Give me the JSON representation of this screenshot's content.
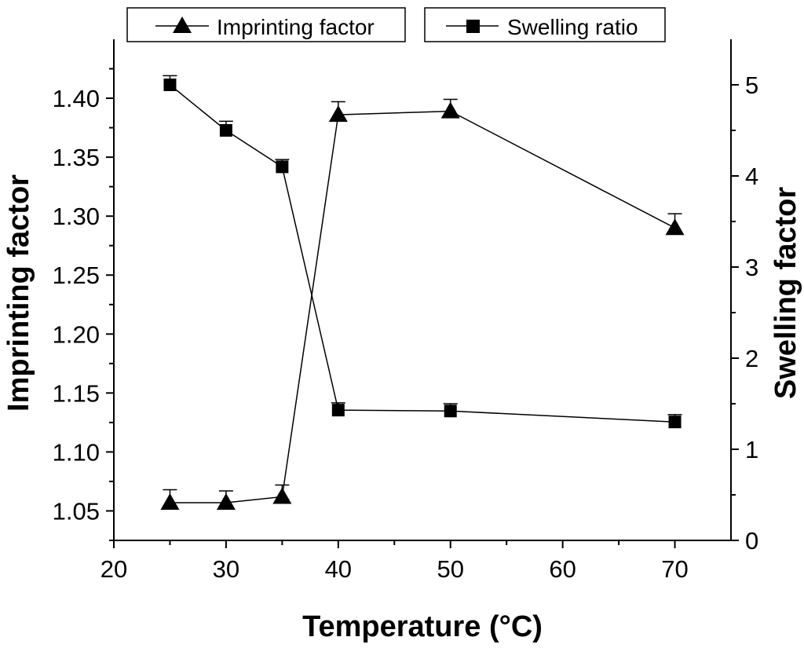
{
  "chart_data": {
    "type": "line",
    "title": "",
    "xlabel": "Temperature (°C)",
    "ylabel": "Imprinting factor",
    "y2label": "Swelling factor",
    "xlim": [
      20,
      75
    ],
    "ylim": [
      1.025,
      1.45
    ],
    "y2lim": [
      0,
      5.5
    ],
    "x_ticks": [
      "20",
      "30",
      "40",
      "50",
      "60",
      "70"
    ],
    "y_ticks": [
      "1.05",
      "1.10",
      "1.15",
      "1.20",
      "1.25",
      "1.30",
      "1.35",
      "1.40"
    ],
    "y2_ticks": [
      "0",
      "1",
      "2",
      "3",
      "4",
      "5"
    ],
    "legend_position": "top",
    "series": [
      {
        "name": "Imprinting factor",
        "axis": "left",
        "marker": "triangle",
        "x": [
          25,
          30,
          35,
          40,
          50,
          70
        ],
        "values": [
          1.057,
          1.057,
          1.062,
          1.386,
          1.389,
          1.29
        ],
        "errors": [
          0.011,
          0.01,
          0.01,
          0.011,
          0.01,
          0.012
        ],
        "color": "#000000"
      },
      {
        "name": "Swelling ratio",
        "axis": "right",
        "marker": "square",
        "x": [
          25,
          30,
          35,
          40,
          50,
          70
        ],
        "values": [
          5.0,
          4.5,
          4.1,
          1.43,
          1.42,
          1.3
        ],
        "errors": [
          0.1,
          0.1,
          0.08,
          0.08,
          0.08,
          0.08
        ],
        "color": "#000000"
      }
    ]
  }
}
